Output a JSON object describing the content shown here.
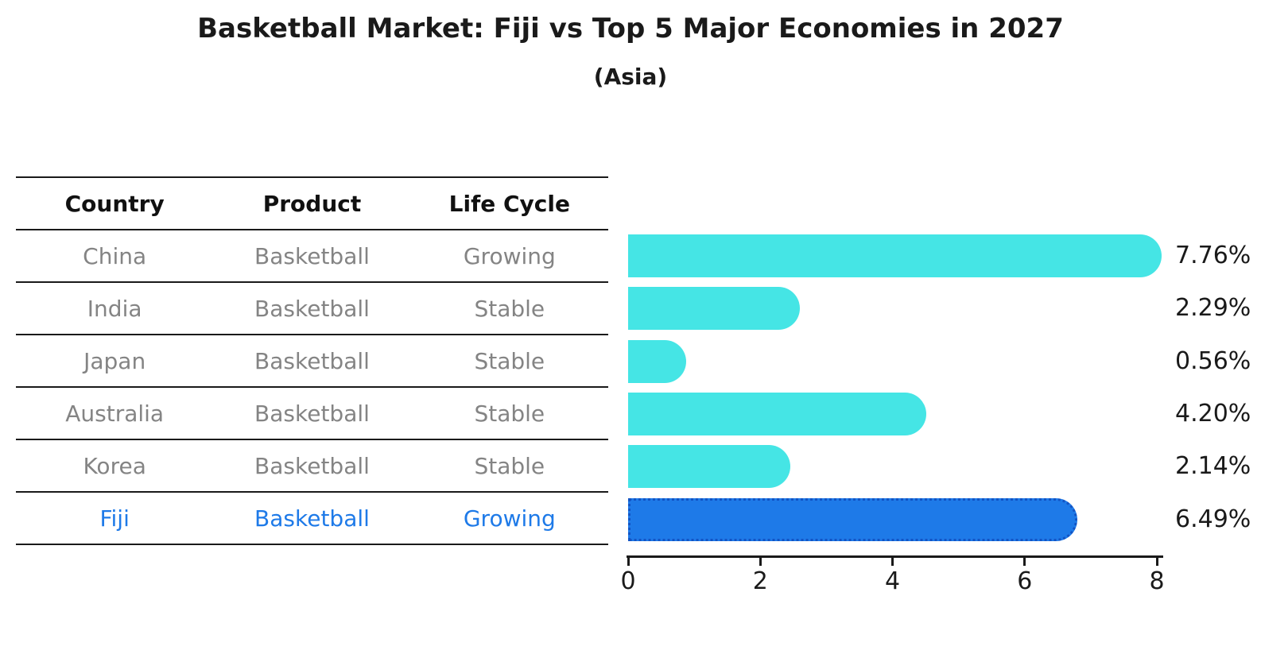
{
  "title": "Basketball Market: Fiji vs Top 5 Major Economies in 2027",
  "subtitle": "(Asia)",
  "table": {
    "columns": [
      "Country",
      "Product",
      "Life Cycle"
    ],
    "rows": [
      {
        "country": "China",
        "product": "Basketball",
        "life_cycle": "Growing",
        "highlight": false
      },
      {
        "country": "India",
        "product": "Basketball",
        "life_cycle": "Stable",
        "highlight": false
      },
      {
        "country": "Japan",
        "product": "Basketball",
        "life_cycle": "Stable",
        "highlight": false
      },
      {
        "country": "Australia",
        "product": "Basketball",
        "life_cycle": "Stable",
        "highlight": false
      },
      {
        "country": "Korea",
        "product": "Basketball",
        "life_cycle": "Stable",
        "highlight": false
      },
      {
        "country": "Fiji",
        "product": "Basketball",
        "life_cycle": "Growing",
        "highlight": true
      }
    ]
  },
  "chart_data": {
    "type": "bar",
    "orientation": "horizontal",
    "categories": [
      "China",
      "India",
      "Japan",
      "Australia",
      "Korea",
      "Fiji"
    ],
    "values": [
      7.76,
      2.29,
      0.56,
      4.2,
      2.14,
      6.49
    ],
    "value_labels": [
      "7.76%",
      "2.29%",
      "0.56%",
      "4.20%",
      "2.14%",
      "6.49%"
    ],
    "xlim": [
      0,
      8
    ],
    "xticks": [
      0,
      2,
      4,
      6,
      8
    ],
    "grid": false,
    "legend": "none",
    "bar_color": "#45E5E5",
    "highlight_index": 5,
    "highlight_color": "#1E7AE8",
    "highlight_border_color": "#1254C4",
    "highlight_text_color": "#1E7AE8",
    "axis_color": "#1a1a1a",
    "table_text_color": "#848484"
  }
}
